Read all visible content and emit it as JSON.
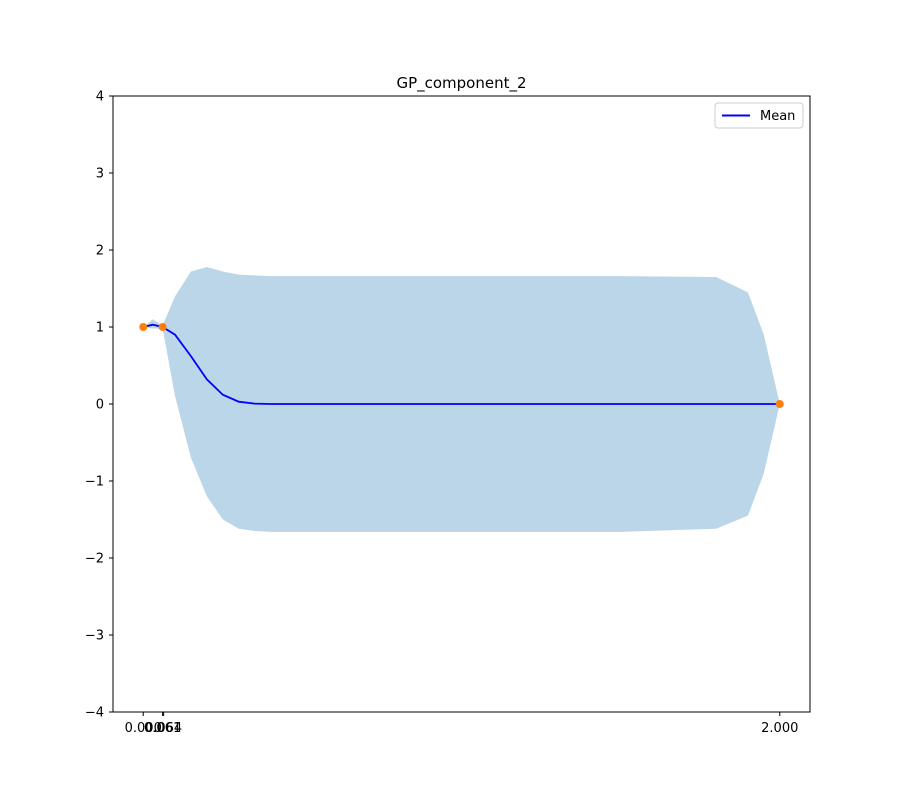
{
  "chart_data": {
    "type": "line",
    "title": "GP_component_2",
    "xlabel": "",
    "ylabel": "",
    "xlim": [
      -0.095,
      2.095
    ],
    "ylim": [
      -4,
      4
    ],
    "x_ticks": [
      {
        "value": 0.0,
        "label": "0.000"
      },
      {
        "value": 0.061,
        "label": "0.061"
      },
      {
        "value": 0.064,
        "label": "0.064"
      },
      {
        "value": 2.0,
        "label": "2.000"
      }
    ],
    "y_ticks": [
      {
        "value": -4,
        "label": "−4"
      },
      {
        "value": -3,
        "label": "−3"
      },
      {
        "value": -2,
        "label": "−2"
      },
      {
        "value": -1,
        "label": "−1"
      },
      {
        "value": 0,
        "label": "0"
      },
      {
        "value": 1,
        "label": "1"
      },
      {
        "value": 2,
        "label": "2"
      },
      {
        "value": 3,
        "label": "3"
      },
      {
        "value": 4,
        "label": "4"
      }
    ],
    "legend": {
      "position": "top-right",
      "entries": [
        {
          "label": "Mean",
          "color": "#0000ff"
        }
      ]
    },
    "grid": false,
    "series": [
      {
        "name": "Mean",
        "color": "#0000ff",
        "x": [
          0.0,
          0.03,
          0.061,
          0.1,
          0.15,
          0.2,
          0.25,
          0.3,
          0.35,
          0.4,
          0.5,
          0.7,
          1.0,
          1.5,
          1.9,
          2.0
        ],
        "y": [
          1.0,
          1.03,
          1.0,
          0.9,
          0.62,
          0.32,
          0.12,
          0.03,
          0.005,
          0.0,
          0.0,
          0.0,
          0.0,
          0.0,
          0.0,
          0.0
        ]
      }
    ],
    "confidence_band": {
      "color": "#bcd6e9",
      "x": [
        0.0,
        0.03,
        0.061,
        0.1,
        0.15,
        0.2,
        0.25,
        0.3,
        0.35,
        0.4,
        0.5,
        0.7,
        1.0,
        1.5,
        1.8,
        1.9,
        1.95,
        2.0
      ],
      "lower": [
        1.0,
        0.98,
        0.98,
        0.1,
        -0.7,
        -1.2,
        -1.5,
        -1.62,
        -1.65,
        -1.66,
        -1.66,
        -1.66,
        -1.66,
        -1.66,
        -1.62,
        -1.45,
        -0.9,
        0.0
      ],
      "upper": [
        1.0,
        1.1,
        1.02,
        1.4,
        1.72,
        1.78,
        1.72,
        1.68,
        1.67,
        1.66,
        1.66,
        1.66,
        1.66,
        1.66,
        1.65,
        1.45,
        0.9,
        0.0
      ]
    },
    "observations": {
      "color": "#ff7f0e",
      "x": [
        0.0,
        0.061,
        2.0
      ],
      "y": [
        1.0,
        1.0,
        0.0
      ]
    }
  }
}
